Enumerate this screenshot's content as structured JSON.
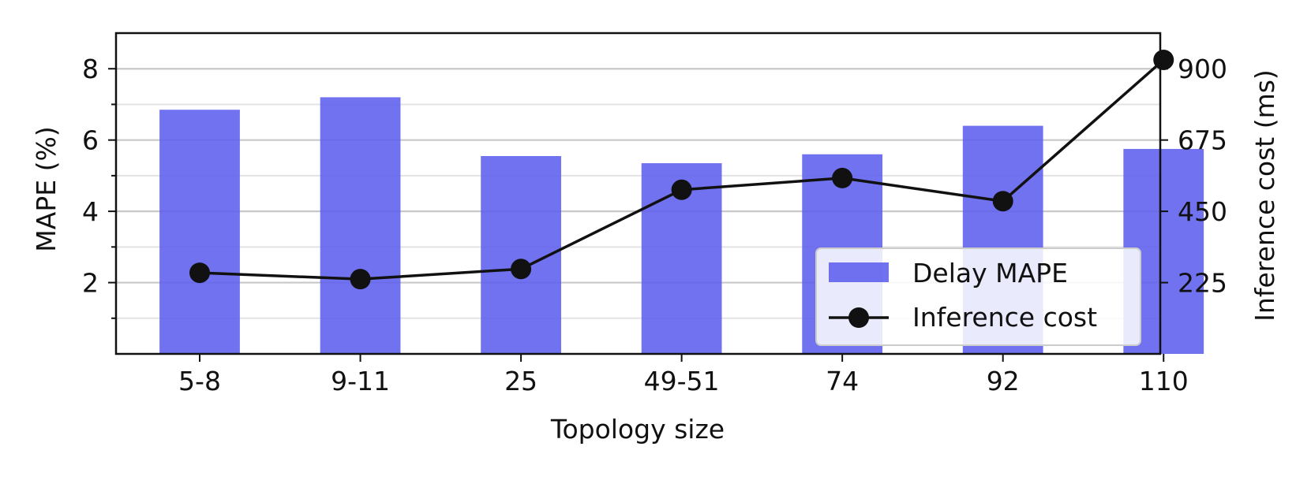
{
  "chart_data": {
    "type": "bar",
    "categories": [
      "5-8",
      "9-11",
      "25",
      "49-51",
      "74",
      "92",
      "110"
    ],
    "xlabel": "Topology size",
    "ylabel": "MAPE (%)",
    "y2label": "Inference cost (ms)",
    "ylim": [
      0,
      9
    ],
    "y2lim": [
      0,
      1012.5
    ],
    "yticks": [
      2,
      4,
      6,
      8
    ],
    "y2ticks": [
      225,
      450,
      675,
      900
    ],
    "grid": true,
    "legend_position": "lower-right",
    "series": [
      {
        "name": "Delay MAPE",
        "type": "bar",
        "axis": "left",
        "color": "#5d5eee",
        "values": [
          6.85,
          7.2,
          5.55,
          5.35,
          5.6,
          6.4,
          5.75
        ]
      },
      {
        "name": "Inference cost",
        "type": "line",
        "axis": "right",
        "color": "#111111",
        "marker": "circle",
        "values": [
          256,
          236,
          268,
          518,
          555,
          482,
          928
        ]
      }
    ]
  }
}
